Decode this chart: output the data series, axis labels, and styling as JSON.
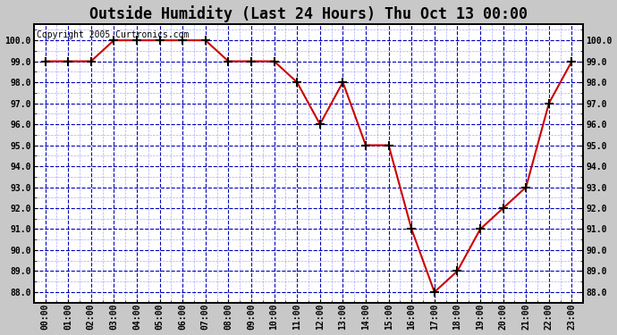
{
  "title": "Outside Humidity (Last 24 Hours) Thu Oct 13 00:00",
  "copyright": "Copyright 2005 Curtronics.com",
  "x_labels": [
    "00:00",
    "01:00",
    "02:00",
    "03:00",
    "04:00",
    "05:00",
    "06:00",
    "07:00",
    "08:00",
    "09:00",
    "10:00",
    "11:00",
    "12:00",
    "13:00",
    "14:00",
    "15:00",
    "16:00",
    "17:00",
    "18:00",
    "19:00",
    "20:00",
    "21:00",
    "22:00",
    "23:00"
  ],
  "x_values": [
    0,
    1,
    2,
    3,
    4,
    5,
    6,
    7,
    8,
    9,
    10,
    11,
    12,
    13,
    14,
    15,
    16,
    17,
    18,
    19,
    20,
    21,
    22,
    23
  ],
  "y_values": [
    99.0,
    99.0,
    99.0,
    100.0,
    100.0,
    100.0,
    100.0,
    100.0,
    99.0,
    99.0,
    99.0,
    98.0,
    96.0,
    98.0,
    95.0,
    95.0,
    91.0,
    88.0,
    89.0,
    91.0,
    92.0,
    93.0,
    97.0,
    99.0
  ],
  "ylim": [
    87.5,
    100.75
  ],
  "yticks": [
    88.0,
    89.0,
    90.0,
    91.0,
    92.0,
    93.0,
    94.0,
    95.0,
    96.0,
    97.0,
    98.0,
    99.0,
    100.0
  ],
  "line_color": "#cc0000",
  "marker_color": "#000000",
  "fig_bg_color": "#c8c8c8",
  "plot_bg_color": "#ffffff",
  "title_fontsize": 12,
  "copyright_fontsize": 7,
  "grid_major_color": "#0000bb",
  "grid_minor_color": "#8888ff",
  "axis_label_color": "#000000",
  "tick_label_color": "#000000",
  "border_color": "#000000"
}
